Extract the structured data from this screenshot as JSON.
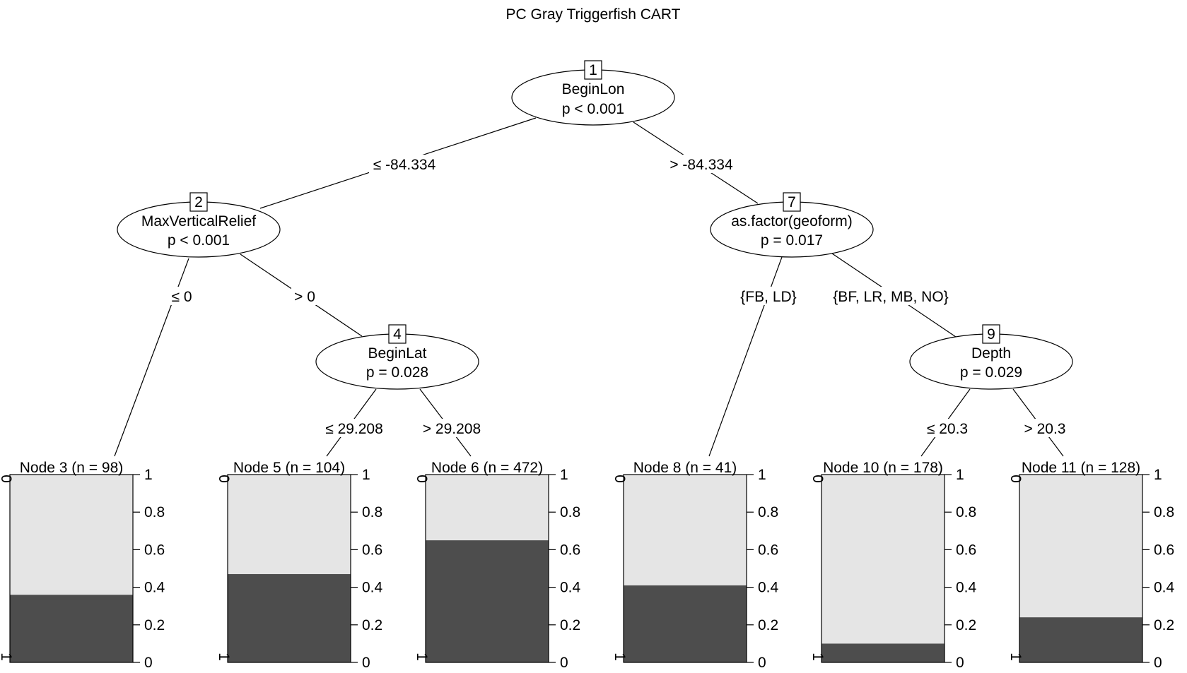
{
  "title": "PC Gray Triggerfish CART",
  "colors": {
    "class0": "#e5e5e5",
    "class1": "#4d4d4d",
    "line": "#000000"
  },
  "nodes": {
    "n1": {
      "id": "1",
      "variable": "BeginLon",
      "p": "p < 0.001"
    },
    "n2": {
      "id": "2",
      "variable": "MaxVerticalRelief",
      "p": "p < 0.001"
    },
    "n4": {
      "id": "4",
      "variable": "BeginLat",
      "p": "p = 0.028"
    },
    "n7": {
      "id": "7",
      "variable": "as.factor(geoform)",
      "p": "p = 0.017"
    },
    "n9": {
      "id": "9",
      "variable": "Depth",
      "p": "p = 0.029"
    }
  },
  "edges": {
    "e1_2": "≤ -84.334",
    "e1_7": "> -84.334",
    "e2_3": "≤ 0",
    "e2_4": "> 0",
    "e4_5": "≤ 29.208",
    "e4_6": "> 29.208",
    "e7_8": "{FB, LD}",
    "e7_9": "{BF, LR, MB, NO}",
    "e9_10": "≤ 20.3",
    "e9_11": "> 20.3"
  },
  "y_axis": {
    "ticks": [
      "0",
      "0.2",
      "0.4",
      "0.6",
      "0.8",
      "1"
    ],
    "class_labels": [
      "0",
      "1"
    ]
  },
  "chart_data": {
    "type": "bar",
    "title": "PC Gray Triggerfish CART",
    "ylim": [
      0,
      1
    ],
    "series_classes": [
      "0",
      "1"
    ],
    "terminals": [
      {
        "label": "Node 3 (n = 98)",
        "node": 3,
        "n": 98,
        "class1_proportion": 0.36
      },
      {
        "label": "Node 5 (n = 104)",
        "node": 5,
        "n": 104,
        "class1_proportion": 0.47
      },
      {
        "label": "Node 6 (n = 472)",
        "node": 6,
        "n": 472,
        "class1_proportion": 0.65
      },
      {
        "label": "Node 8 (n = 41)",
        "node": 8,
        "n": 41,
        "class1_proportion": 0.41
      },
      {
        "label": "Node 10 (n = 178)",
        "node": 10,
        "n": 178,
        "class1_proportion": 0.1
      },
      {
        "label": "Node 11 (n = 128)",
        "node": 11,
        "n": 128,
        "class1_proportion": 0.24
      }
    ]
  }
}
